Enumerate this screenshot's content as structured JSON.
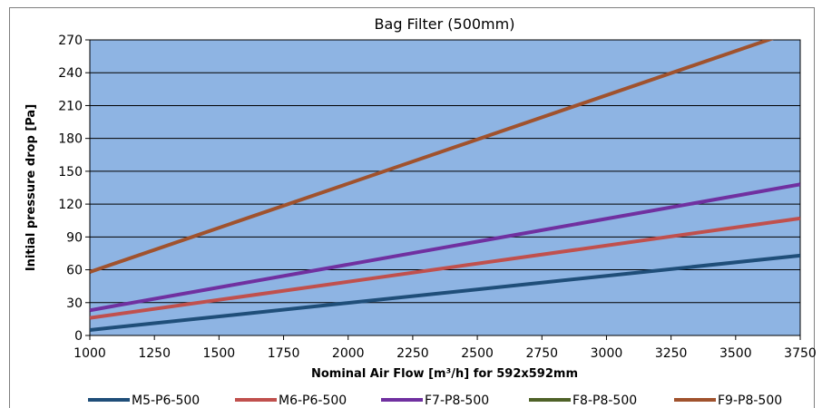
{
  "chart_data": {
    "type": "line",
    "title": "Bag Filter (500mm)",
    "xlabel": "Nominal Air Flow [m³/h] for 592x592mm",
    "ylabel": "Initial pressure drop [Pa]",
    "xlim": [
      1000,
      3750
    ],
    "ylim": [
      0,
      270
    ],
    "xticks": [
      1000,
      1250,
      1500,
      1750,
      2000,
      2250,
      2500,
      2750,
      3000,
      3250,
      3500,
      3750
    ],
    "yticks": [
      0,
      30,
      60,
      90,
      120,
      150,
      180,
      210,
      240,
      270
    ],
    "grid": "horizontal",
    "legend_position": "bottom",
    "plot_background": "#8eb4e3",
    "series": [
      {
        "name": "M5-P6-500",
        "color": "#1f4e79",
        "x": [
          1000,
          3750
        ],
        "y": [
          5,
          73
        ]
      },
      {
        "name": "M6-P6-500",
        "color": "#c0504d",
        "x": [
          1000,
          3750
        ],
        "y": [
          16,
          107
        ]
      },
      {
        "name": "F7-P8-500",
        "color": "#7030a0",
        "x": [
          1000,
          3750
        ],
        "y": [
          23,
          138
        ]
      },
      {
        "name": "F8-P8-500",
        "color": "#4f6228",
        "x": [],
        "y": []
      },
      {
        "name": "F9-P8-500",
        "color": "#a0522d",
        "x": [
          1000,
          3750
        ],
        "y": [
          58,
          280
        ]
      }
    ]
  }
}
